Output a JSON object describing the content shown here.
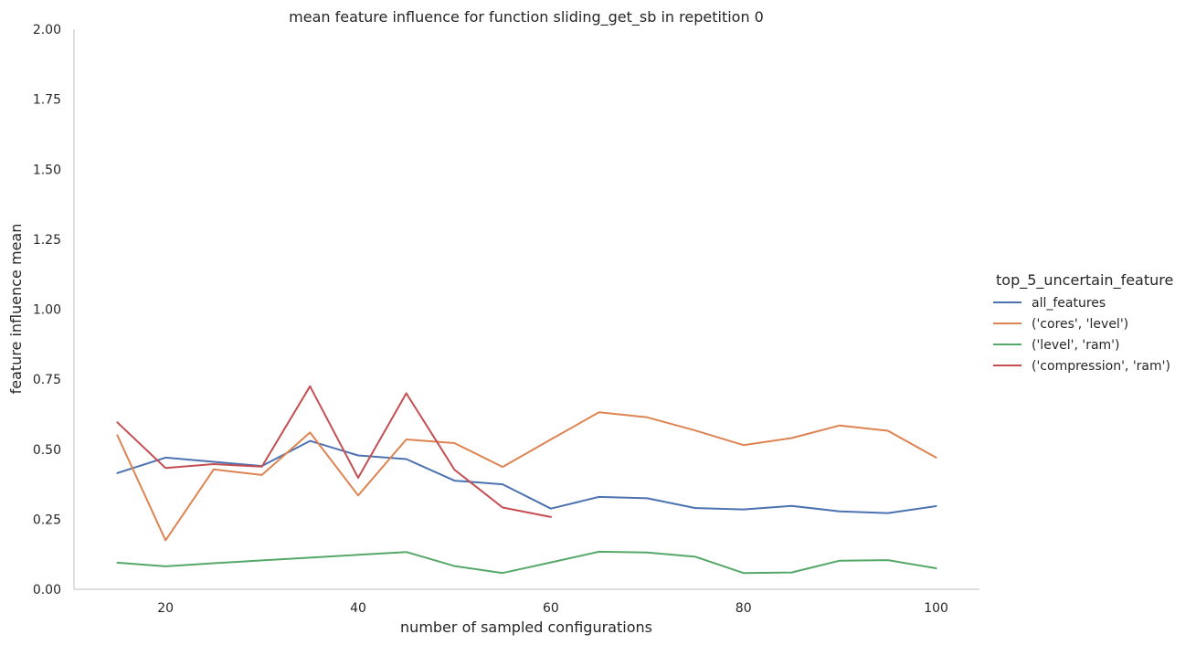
{
  "chart_data": {
    "type": "line",
    "title": "mean feature influence for function sliding_get_sb in repetition 0",
    "xlabel": "number of sampled configurations",
    "ylabel": "feature influence mean",
    "xlim": [
      10.5,
      104.5
    ],
    "ylim": [
      0,
      2
    ],
    "xticks": [
      20,
      40,
      60,
      80,
      100
    ],
    "yticks": [
      0.0,
      0.25,
      0.5,
      0.75,
      1.0,
      1.25,
      1.5,
      1.75,
      2.0
    ],
    "ytick_labels": [
      "0.00",
      "0.25",
      "0.50",
      "0.75",
      "1.00",
      "1.25",
      "1.50",
      "1.75",
      "2.00"
    ],
    "grid": false,
    "legend": {
      "title": "top_5_uncertain_feature",
      "placement": "right"
    },
    "series": [
      {
        "name": "all_features",
        "color": "#4c72b0",
        "x": [
          15,
          20,
          25,
          30,
          35,
          40,
          45,
          50,
          55,
          60,
          65,
          70,
          75,
          80,
          85,
          90,
          95,
          100
        ],
        "y": [
          0.415,
          0.47,
          0.455,
          0.44,
          0.53,
          0.478,
          0.465,
          0.388,
          0.375,
          0.288,
          0.33,
          0.325,
          0.29,
          0.285,
          0.298,
          0.278,
          0.272,
          0.297
        ]
      },
      {
        "name": "('cores', 'level')",
        "color": "#dd8452",
        "x": [
          15,
          20,
          25,
          30,
          35,
          40,
          45,
          50,
          55,
          60,
          65,
          70,
          75,
          80,
          85,
          90,
          95,
          100
        ],
        "y": [
          0.55,
          0.175,
          0.428,
          0.408,
          0.56,
          0.335,
          0.535,
          0.522,
          0.437,
          0.535,
          0.632,
          0.614,
          0.567,
          0.515,
          0.54,
          0.585,
          0.566,
          0.47
        ]
      },
      {
        "name": "('level', 'ram')",
        "color": "#55a868",
        "x": [
          15,
          20,
          25,
          30,
          35,
          40,
          45,
          50,
          55,
          60,
          65,
          70,
          75,
          80,
          85,
          90,
          95,
          100
        ],
        "y": [
          0.095,
          0.082,
          0.093,
          0.103,
          0.113,
          0.123,
          0.133,
          0.083,
          0.058,
          0.096,
          0.134,
          0.131,
          0.116,
          0.058,
          0.06,
          0.102,
          0.104,
          0.075
        ]
      },
      {
        "name": "('compression', 'ram')",
        "color": "#c44e52",
        "x": [
          15,
          20,
          25,
          30,
          35,
          40,
          45,
          50,
          55,
          60
        ],
        "y": [
          0.596,
          0.433,
          0.447,
          0.438,
          0.725,
          0.398,
          0.7,
          0.427,
          0.292,
          0.258
        ]
      }
    ]
  }
}
